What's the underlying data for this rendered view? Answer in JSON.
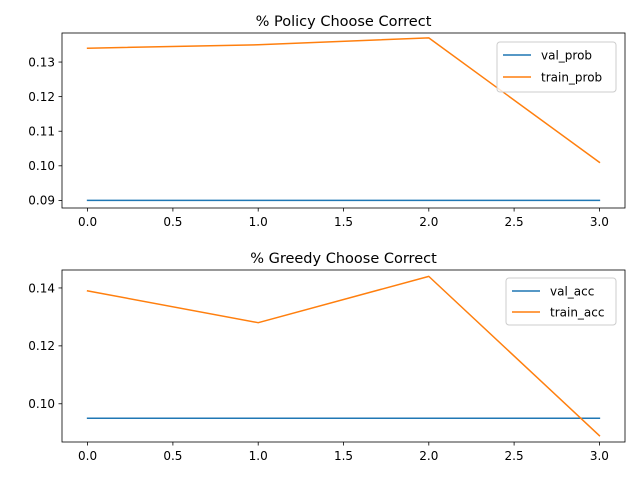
{
  "chart_data": [
    {
      "type": "line",
      "title": "% Policy Choose Correct",
      "xlabel": "",
      "ylabel": "",
      "xlim": [
        -0.15,
        3.15
      ],
      "ylim": [
        0.0878,
        0.1384
      ],
      "xticks": [
        0.0,
        0.5,
        1.0,
        1.5,
        2.0,
        2.5,
        3.0
      ],
      "xtick_labels": [
        "0.0",
        "0.5",
        "1.0",
        "1.5",
        "2.0",
        "2.5",
        "3.0"
      ],
      "yticks": [
        0.09,
        0.1,
        0.11,
        0.12,
        0.13
      ],
      "ytick_labels": [
        "0.09",
        "0.10",
        "0.11",
        "0.12",
        "0.13"
      ],
      "grid": false,
      "legend": "top-right",
      "x": [
        0,
        1,
        2,
        3
      ],
      "series": [
        {
          "name": "val_prob",
          "color": "#1f77b4",
          "values": [
            0.09,
            0.09,
            0.09,
            0.09
          ]
        },
        {
          "name": "train_prob",
          "color": "#ff7f0e",
          "values": [
            0.134,
            0.135,
            0.137,
            0.101
          ]
        }
      ]
    },
    {
      "type": "line",
      "title": "% Greedy Choose Correct",
      "xlabel": "",
      "ylabel": "",
      "xlim": [
        -0.15,
        3.15
      ],
      "ylim": [
        0.0868,
        0.1462
      ],
      "xticks": [
        0.0,
        0.5,
        1.0,
        1.5,
        2.0,
        2.5,
        3.0
      ],
      "xtick_labels": [
        "0.0",
        "0.5",
        "1.0",
        "1.5",
        "2.0",
        "2.5",
        "3.0"
      ],
      "yticks": [
        0.1,
        0.12,
        0.14
      ],
      "ytick_labels": [
        "0.10",
        "0.12",
        "0.14"
      ],
      "grid": false,
      "legend": "top-right",
      "x": [
        0,
        1,
        2,
        3
      ],
      "series": [
        {
          "name": "val_acc",
          "color": "#1f77b4",
          "values": [
            0.095,
            0.095,
            0.095,
            0.095
          ]
        },
        {
          "name": "train_acc",
          "color": "#ff7f0e",
          "values": [
            0.139,
            0.128,
            0.144,
            0.089
          ]
        }
      ]
    }
  ]
}
